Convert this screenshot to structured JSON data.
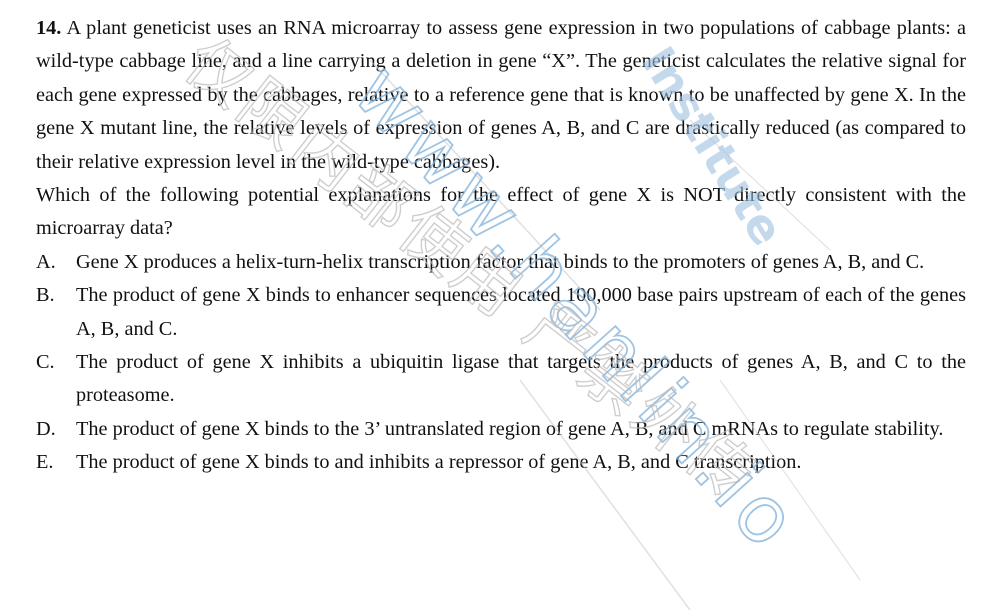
{
  "question": {
    "number": "14.",
    "stem": "A plant geneticist uses an RNA microarray to assess gene expression in two populations of cabbage plants: a wild-type cabbage line, and a line carrying a deletion in gene “X”. The geneticist calculates the relative signal for each gene expressed by the cabbages, relative to a reference gene that is known to be unaffected by gene X. In the gene X mutant line, the relative levels of expression of genes A, B, and C are drastically reduced (as compared to their relative expression level in the wild-type cabbages).",
    "prompt": "Which of the following potential explanations for the effect of gene X is NOT directly consistent with the microarray data?",
    "options": [
      {
        "letter": "A.",
        "text": "Gene X produces a helix-turn-helix transcription factor that binds to the promoters of genes A, B, and C."
      },
      {
        "letter": "B.",
        "text": "The product of gene X binds to enhancer sequences located 100,000 base pairs upstream of each of the genes A, B, and C."
      },
      {
        "letter": "C.",
        "text": "The product of gene X inhibits a ubiquitin ligase that targets the products of genes A, B, and C to the proteasome."
      },
      {
        "letter": "D.",
        "text": "The product of gene X binds to the 3’ untranslated region of gene A, B, and C mRNAs to regulate stability."
      },
      {
        "letter": "E.",
        "text": "The product of gene X binds to and inhibits a repressor of gene A, B, and C transcription."
      }
    ]
  },
  "watermark": {
    "url": "www.hanlin.io",
    "brand": "Institute",
    "cjk": "仅限内部使用 严禁外传",
    "color_blue": "#9cc1e0",
    "color_gray": "#c8c8c8"
  }
}
